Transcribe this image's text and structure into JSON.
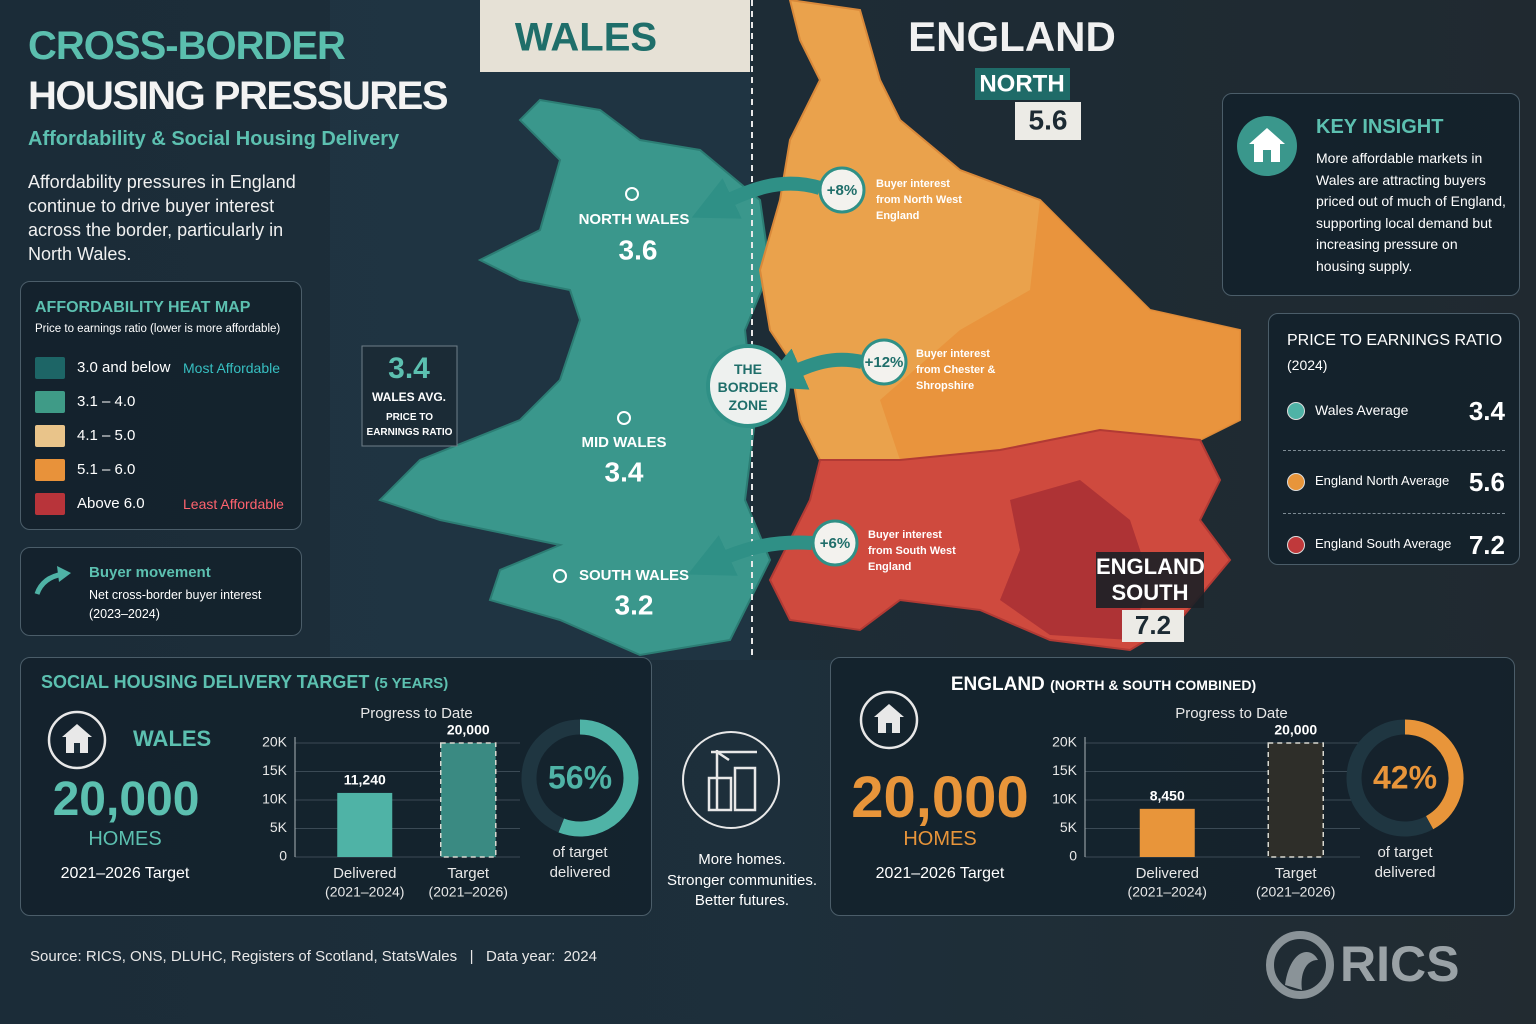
{
  "header": {
    "title_line1": "CROSS-BORDER",
    "title_line2": "HOUSING PRESSURES",
    "subtitle": "Affordability & Social Housing Delivery",
    "intro": "Affordability pressures in England continue to drive buyer interest across the border, particularly in North Wales."
  },
  "map": {
    "wales": "WALES",
    "england": "ENGLAND",
    "england_north": {
      "label": "NORTH",
      "value": 5.6
    },
    "england_south": {
      "label": "ENGLAND SOUTH",
      "value": 7.2
    },
    "wales_regions": [
      {
        "name": "NORTH WALES",
        "value": 3.6
      },
      {
        "name": "MID WALES",
        "value": 3.4
      },
      {
        "name": "SOUTH WALES",
        "value": 3.2
      }
    ],
    "wales_avg": {
      "value": 3.4,
      "label": "WALES AVG.",
      "sublabel": "PRICE TO EARNINGS RATIO"
    },
    "border_zone": "THE BORDER ZONE",
    "flows": [
      {
        "label": "+8%",
        "text": "Buyer interest from North West England"
      },
      {
        "label": "+12%",
        "text": "Buyer interest from Chester & Shropshire"
      },
      {
        "label": "+6%",
        "text": "Buyer interest from South West England"
      }
    ]
  },
  "heat_map": {
    "title": "AFFORDABILITY HEAT MAP",
    "subtitle": "Price to earnings ratio (lower is more affordable)",
    "items": [
      {
        "color": "#1d6566",
        "label": "3.0 and below",
        "note": "Most Affordable"
      },
      {
        "color": "#3f9b87",
        "label": "3.1 – 4.0"
      },
      {
        "color": "#e9c48a",
        "label": "4.1 – 5.0"
      },
      {
        "color": "#e8923a",
        "label": "5.1 – 6.0"
      },
      {
        "color": "#b8343a",
        "label": "Above 6.0",
        "note": "Least Affordable"
      }
    ]
  },
  "buyer_movement": {
    "title": "Buyer movement",
    "text": "Net cross-border buyer interest (2023–2024)"
  },
  "key_insight": {
    "title": "KEY INSIGHT",
    "text": "More affordable markets in Wales are attracting buyers priced out of much of England, supporting local demand but increasing pressure on housing supply."
  },
  "pe_ratio": {
    "title": "PRICE TO EARNINGS RATIO",
    "subtitle": "(2024)",
    "items": [
      {
        "name": "Wales Average",
        "color": "#4fb3a6",
        "value": 3.4
      },
      {
        "name": "England North Average",
        "color": "#e8953a",
        "value": 5.6
      },
      {
        "name": "England South Average",
        "color": "#c0393b",
        "value": 7.2
      }
    ]
  },
  "social_housing": {
    "title": "SOCIAL HOUSING DELIVERY TARGET",
    "title_suffix": "(5 YEARS)",
    "wales": {
      "name": "WALES",
      "target": "20,000",
      "unit": "HOMES",
      "period": "2021–2026 Target"
    },
    "england": {
      "name": "ENGLAND",
      "name_suffix": "(NORTH & SOUTH COMBINED)",
      "target": "20,000",
      "unit": "HOMES",
      "period": "2021–2026 Target"
    },
    "tagline": [
      "More homes.",
      "Stronger communities.",
      "Better futures."
    ]
  },
  "chart_data": [
    {
      "type": "bar",
      "title": "Progress to Date",
      "categories": [
        "Delivered",
        "Target"
      ],
      "category_notes": [
        "(2021–2024)",
        "(2021–2026)"
      ],
      "values": [
        11240,
        20000
      ],
      "value_labels": [
        "11,240",
        "20,000"
      ],
      "colors": [
        "#4fb3a6",
        "#3a8a82"
      ],
      "ylim": [
        0,
        20000
      ],
      "yticks": [
        0,
        {
          "value": 5000,
          "label": "5K"
        },
        {
          "value": 10000,
          "label": "10K"
        },
        {
          "value": 15000,
          "label": "15K"
        },
        {
          "value": 20000,
          "label": "20K"
        }
      ],
      "grid": true
    },
    {
      "type": "pie",
      "values": [
        56,
        44
      ],
      "value_labels": [
        "56%",
        null
      ],
      "colors": [
        "#4fb3a6",
        "#1f3641"
      ],
      "caption": [
        "of target",
        "delivered"
      ]
    },
    {
      "type": "bar",
      "title": "Progress to Date",
      "categories": [
        "Delivered",
        "Target"
      ],
      "category_notes": [
        "(2021–2024)",
        "(2021–2026)"
      ],
      "values": [
        8450,
        20000
      ],
      "value_labels": [
        "8,450",
        "20,000"
      ],
      "colors": [
        "#e8953a",
        "#2e2e29"
      ],
      "ylim": [
        0,
        20000
      ],
      "yticks": [
        0,
        {
          "value": 5000,
          "label": "5K"
        },
        {
          "value": 10000,
          "label": "10K"
        },
        {
          "value": 15000,
          "label": "15K"
        },
        {
          "value": 20000,
          "label": "20K"
        }
      ],
      "grid": true
    },
    {
      "type": "pie",
      "values": [
        42,
        58
      ],
      "value_labels": [
        "42%",
        null
      ],
      "colors": [
        "#e8953a",
        "#1f3641"
      ],
      "caption": [
        "of target",
        "delivered"
      ]
    }
  ],
  "footer": {
    "source": "Source: RICS, ONS, DLUHC, Registers of Scotland, StatsWales",
    "separator": "|",
    "data_year": "Data year:  2024",
    "logo": "RICS"
  }
}
